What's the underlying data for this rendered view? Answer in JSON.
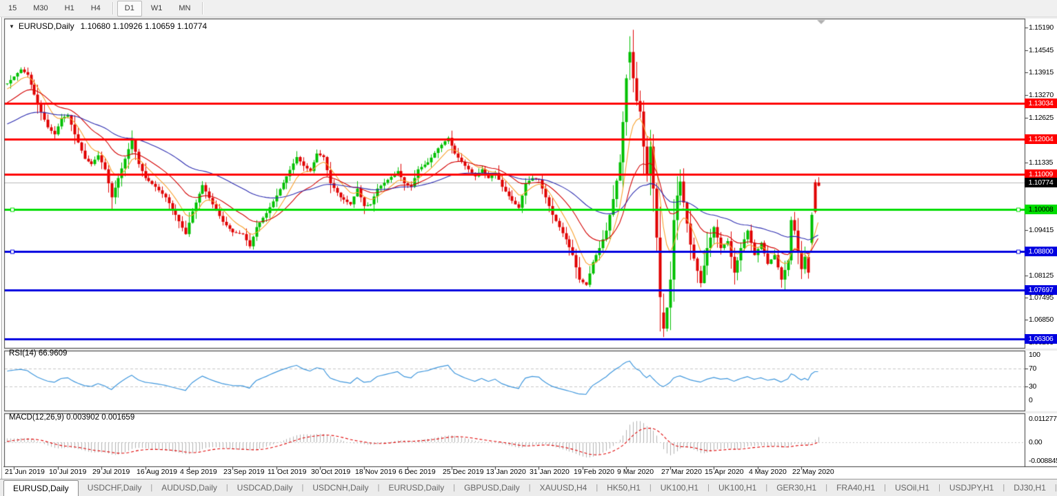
{
  "toolbar": {
    "timeframes": [
      {
        "label": "15",
        "active": false
      },
      {
        "label": "M30",
        "active": false
      },
      {
        "label": "H1",
        "active": false
      },
      {
        "label": "H4",
        "active": false
      },
      {
        "label": "sep",
        "active": false
      },
      {
        "label": "D1",
        "active": true
      },
      {
        "label": "W1",
        "active": false
      },
      {
        "label": "MN",
        "active": false
      },
      {
        "label": "sep",
        "active": false
      }
    ]
  },
  "window": {
    "title_symbol": "EURUSD,Daily",
    "title_ohlc": "1.10680 1.10926 1.10659 1.10774",
    "dropdown_arrow": "▼"
  },
  "price_axis": {
    "plain_ticks": [
      {
        "text": "1.15190",
        "v": 1.1519
      },
      {
        "text": "1.14545",
        "v": 1.14545
      },
      {
        "text": "1.13915",
        "v": 1.13915
      },
      {
        "text": "1.13270",
        "v": 1.1327
      },
      {
        "text": "1.12625",
        "v": 1.12625
      },
      {
        "text": "1.11335",
        "v": 1.11335
      },
      {
        "text": "1.09415",
        "v": 1.09415
      },
      {
        "text": "1.08125",
        "v": 1.08125
      },
      {
        "text": "1.07495",
        "v": 1.07495
      },
      {
        "text": "1.06850",
        "v": 1.0685
      },
      {
        "text": "1.06205",
        "v": 1.06205
      }
    ]
  },
  "rsi_panel": {
    "label": "RSI(14) 66.9609",
    "axis_labels": [
      {
        "text": "100",
        "v": 100
      },
      {
        "text": "70",
        "v": 70
      },
      {
        "text": "30",
        "v": 30
      },
      {
        "text": "0",
        "v": 0
      }
    ]
  },
  "macd_panel": {
    "label": "MACD(12,26,9) 0.003902 0.001659",
    "axis_labels": [
      {
        "text": "0.011277",
        "v": 0.011277
      },
      {
        "text": "0.00",
        "v": 0
      },
      {
        "text": "-0.008845",
        "v": -0.008845
      }
    ]
  },
  "tabs": [
    {
      "label": "EURUSD,Daily",
      "active": true
    },
    {
      "label": "USDCHF,Daily",
      "active": false
    },
    {
      "label": "AUDUSD,Daily",
      "active": false
    },
    {
      "label": "USDCAD,Daily",
      "active": false
    },
    {
      "label": "USDCNH,Daily",
      "active": false
    },
    {
      "label": "EURUSD,Daily",
      "active": false
    },
    {
      "label": "GBPUSD,Daily",
      "active": false
    },
    {
      "label": "XAUUSD,H4",
      "active": false
    },
    {
      "label": "HK50,H1",
      "active": false
    },
    {
      "label": "UK100,H1",
      "active": false
    },
    {
      "label": "UK100,H1",
      "active": false
    },
    {
      "label": "GER30,H1",
      "active": false
    },
    {
      "label": "FRA40,H1",
      "active": false
    },
    {
      "label": "USOil,H1",
      "active": false
    },
    {
      "label": "USDJPY,H1",
      "active": false
    },
    {
      "label": "DJ30,H1",
      "active": false
    }
  ],
  "tab_scroll": {
    "left": "◄",
    "right": "►"
  },
  "chart_data": {
    "type": "candlestick",
    "symbol": "EURUSD",
    "timeframe": "Daily",
    "current_ohlc": {
      "open": 1.1068,
      "high": 1.10926,
      "low": 1.10659,
      "close": 1.10774
    },
    "visible_price_range": {
      "top": 1.1541,
      "bottom": 1.0605
    },
    "num_candles": 242,
    "candle_colors": {
      "up": "#00c000",
      "down": "#e00000"
    },
    "close_anchors": [
      [
        0,
        1.136
      ],
      [
        2,
        1.138
      ],
      [
        4,
        1.14
      ],
      [
        6,
        1.1385
      ],
      [
        9,
        1.13
      ],
      [
        12,
        1.1235
      ],
      [
        14,
        1.1215
      ],
      [
        16,
        1.126
      ],
      [
        18,
        1.127
      ],
      [
        20,
        1.1215
      ],
      [
        23,
        1.1145
      ],
      [
        25,
        1.113
      ],
      [
        27,
        1.1155
      ],
      [
        29,
        1.1115
      ],
      [
        31,
        1.1035
      ],
      [
        33,
        1.109
      ],
      [
        35,
        1.1145
      ],
      [
        37,
        1.12
      ],
      [
        39,
        1.113
      ],
      [
        41,
        1.109
      ],
      [
        44,
        1.1065
      ],
      [
        47,
        1.1035
      ],
      [
        50,
        1.0985
      ],
      [
        53,
        1.093
      ],
      [
        55,
        1.0995
      ],
      [
        58,
        1.107
      ],
      [
        61,
        1.1015
      ],
      [
        64,
        1.0965
      ],
      [
        67,
        1.0935
      ],
      [
        70,
        1.093
      ],
      [
        72,
        1.0895
      ],
      [
        74,
        1.095
      ],
      [
        77,
        1.099
      ],
      [
        80,
        1.104
      ],
      [
        83,
        1.1095
      ],
      [
        86,
        1.115
      ],
      [
        88,
        1.1125
      ],
      [
        90,
        1.111
      ],
      [
        92,
        1.116
      ],
      [
        94,
        1.115
      ],
      [
        96,
        1.1075
      ],
      [
        99,
        1.1035
      ],
      [
        102,
        1.1015
      ],
      [
        104,
        1.106
      ],
      [
        106,
        1.101
      ],
      [
        108,
        1.1015
      ],
      [
        110,
        1.106
      ],
      [
        113,
        1.1085
      ],
      [
        116,
        1.111
      ],
      [
        118,
        1.1075
      ],
      [
        120,
        1.1065
      ],
      [
        122,
        1.1115
      ],
      [
        125,
        1.1135
      ],
      [
        128,
        1.1175
      ],
      [
        131,
        1.1205
      ],
      [
        133,
        1.116
      ],
      [
        136,
        1.1125
      ],
      [
        139,
        1.1095
      ],
      [
        141,
        1.1115
      ],
      [
        143,
        1.109
      ],
      [
        145,
        1.1105
      ],
      [
        147,
        1.1065
      ],
      [
        150,
        1.1025
      ],
      [
        152,
        1.1005
      ],
      [
        154,
        1.1075
      ],
      [
        156,
        1.109
      ],
      [
        158,
        1.1085
      ],
      [
        160,
        1.1035
      ],
      [
        162,
        1.0985
      ],
      [
        164,
        1.095
      ],
      [
        166,
        1.0915
      ],
      [
        168,
        1.087
      ],
      [
        170,
        1.08
      ],
      [
        172,
        1.0785
      ],
      [
        174,
        1.085
      ],
      [
        176,
        1.089
      ],
      [
        178,
        1.094
      ],
      [
        180,
        1.103
      ],
      [
        182,
        1.1135
      ],
      [
        183,
        1.125
      ],
      [
        184,
        1.1375
      ],
      [
        185,
        1.145
      ],
      [
        186,
        1.1375
      ],
      [
        187,
        1.131
      ],
      [
        188,
        1.128
      ],
      [
        189,
        1.118
      ],
      [
        190,
        1.11
      ],
      [
        191,
        1.118
      ],
      [
        192,
        1.106
      ],
      [
        193,
        1.092
      ],
      [
        194,
        1.075
      ],
      [
        195,
        1.066
      ],
      [
        196,
        1.072
      ],
      [
        197,
        1.08
      ],
      [
        198,
        1.097
      ],
      [
        199,
        1.104
      ],
      [
        200,
        1.108
      ],
      [
        201,
        1.102
      ],
      [
        202,
        1.096
      ],
      [
        203,
        1.09
      ],
      [
        204,
        1.086
      ],
      [
        206,
        1.079
      ],
      [
        208,
        1.089
      ],
      [
        210,
        1.095
      ],
      [
        212,
        1.089
      ],
      [
        214,
        1.091
      ],
      [
        216,
        1.082
      ],
      [
        218,
        1.089
      ],
      [
        220,
        1.094
      ],
      [
        222,
        1.087
      ],
      [
        224,
        1.0905
      ],
      [
        226,
        1.0845
      ],
      [
        228,
        1.087
      ],
      [
        230,
        1.08
      ],
      [
        232,
        1.0855
      ],
      [
        233,
        1.097
      ],
      [
        234,
        1.094
      ],
      [
        235,
        1.088
      ],
      [
        236,
        1.083
      ],
      [
        237,
        1.0865
      ],
      [
        238,
        1.082
      ],
      [
        239,
        1.095
      ],
      [
        240,
        1.1078
      ],
      [
        241,
        1.1077
      ]
    ],
    "candle_overrides": [
      {
        "i": 185,
        "o": 1.142,
        "h": 1.1495,
        "l": 1.137,
        "c": 1.145
      },
      {
        "i": 195,
        "o": 1.0706,
        "h": 1.076,
        "l": 1.0636,
        "c": 1.066
      },
      {
        "i": 239,
        "o": 1.0905,
        "h": 1.0992,
        "l": 1.0898,
        "c": 1.0985
      },
      {
        "i": 240,
        "o": 1.0994,
        "h": 1.1086,
        "l": 1.0989,
        "c": 1.1078,
        "dir": "down"
      },
      {
        "i": 241,
        "o": 1.1068,
        "h": 1.10926,
        "l": 1.10659,
        "c": 1.10774,
        "dir": "down"
      }
    ],
    "moving_averages": [
      {
        "type": "ema",
        "period": 8,
        "color": "#f9a12d",
        "seed": 1.134
      },
      {
        "type": "ema",
        "period": 21,
        "color": "#d40000",
        "seed": 1.13
      },
      {
        "type": "ema",
        "period": 55,
        "color": "#2b2bb0",
        "seed": 1.124
      }
    ],
    "horizontal_lines": [
      {
        "text": "1.13034",
        "v": 1.13034,
        "color": "#ff0000",
        "fg": "#ffffff",
        "w": 3,
        "handles": false
      },
      {
        "text": "1.12004",
        "v": 1.12004,
        "color": "#ff0000",
        "fg": "#ffffff",
        "w": 3,
        "handles": false
      },
      {
        "text": "1.11009",
        "v": 1.11009,
        "color": "#ff0000",
        "fg": "#ffffff",
        "w": 3,
        "handles": false
      },
      {
        "text": "1.10008",
        "v": 1.10008,
        "color": "#00dd00",
        "fg": "#000000",
        "w": 3,
        "handles": true
      },
      {
        "text": "1.08800",
        "v": 1.088,
        "color": "#0000e0",
        "fg": "#ffffff",
        "w": 3,
        "handles": true
      },
      {
        "text": "1.07697",
        "v": 1.07697,
        "color": "#0000e0",
        "fg": "#ffffff",
        "w": 3,
        "handles": false
      },
      {
        "text": "1.06306",
        "v": 1.06306,
        "color": "#0000e0",
        "fg": "#ffffff",
        "w": 3,
        "handles": false
      }
    ],
    "current_price_line": {
      "value": 1.10774,
      "label": "1.10774",
      "line_color": "#b8b8b8",
      "label_bg": "#000000",
      "label_fg": "#ffffff"
    },
    "indicators": {
      "rsi": {
        "period": 14,
        "value": 66.9609,
        "levels": [
          70,
          30
        ],
        "color": "#3d96dd",
        "level_color": "#c6c6c6",
        "range": [
          0,
          100
        ]
      },
      "macd": {
        "fast": 12,
        "slow": 26,
        "signal": 9,
        "macd_value": 0.003902,
        "signal_value": 0.001659,
        "hist_color": "#b2b2b2",
        "signal_color": "#e00000",
        "axis_max": 0.011277,
        "axis_min": -0.008845
      }
    },
    "date_ticks": {
      "labels": [
        "21 Jun 2019",
        "10 Jul 2019",
        "29 Jul 2019",
        "16 Aug 2019",
        "4 Sep 2019",
        "23 Sep 2019",
        "11 Oct 2019",
        "30 Oct 2019",
        "18 Nov 2019",
        "6 Dec 2019",
        "25 Dec 2019",
        "13 Jan 2020",
        "31 Jan 2020",
        "19 Feb 2020",
        "9 Mar 2020",
        "27 Mar 2020",
        "15 Apr 2020",
        "4 May 2020",
        "22 May 2020"
      ],
      "first_candle_index": 2,
      "step": 13
    }
  }
}
